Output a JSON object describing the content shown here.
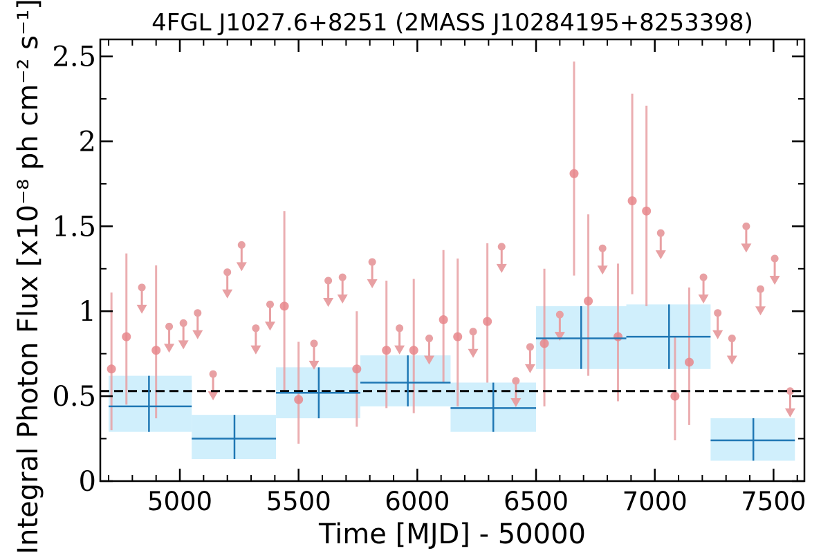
{
  "chart_data": {
    "type": "scatter",
    "title": "4FGL J1027.6+8251 (2MASS J10284195+8253398)",
    "xlabel": "Time [MJD] - 50000",
    "ylabel": "Integral Photon Flux [x10⁻⁸ ph cm⁻² s⁻¹]",
    "xlim": [
      4665,
      7630
    ],
    "ylim": [
      0,
      2.6
    ],
    "x_ticks": [
      5000,
      5500,
      6000,
      6500,
      7000,
      7500
    ],
    "y_ticks": [
      0,
      0.5,
      1,
      1.5,
      2,
      2.5
    ],
    "y_tick_labels": [
      "0",
      "0.5",
      "1",
      "1.5",
      "2",
      "2.5"
    ],
    "reference_line": {
      "y": 0.53,
      "style": "dashed",
      "color": "#000000"
    },
    "colors": {
      "points": "#e8878c",
      "arrows": "#e8a0a3",
      "bins": "#1f77b4",
      "bin_box": "#cdeefc"
    },
    "series": [
      {
        "kind": "detections",
        "points": [
          {
            "x": 4712,
            "y": 0.66,
            "ylo": 0.3,
            "yhi": 1.11
          },
          {
            "x": 4775,
            "y": 0.85,
            "ylo": 0.45,
            "yhi": 1.34
          },
          {
            "x": 4900,
            "y": 0.77,
            "ylo": 0.37,
            "yhi": 1.27
          },
          {
            "x": 5440,
            "y": 1.03,
            "ylo": 0.52,
            "yhi": 1.59
          },
          {
            "x": 5500,
            "y": 0.48,
            "ylo": 0.22,
            "yhi": 0.82
          },
          {
            "x": 5745,
            "y": 0.66,
            "ylo": 0.32,
            "yhi": 1.0
          },
          {
            "x": 5870,
            "y": 0.77,
            "ylo": 0.43,
            "yhi": 1.18
          },
          {
            "x": 5985,
            "y": 0.77,
            "ylo": 0.4,
            "yhi": 1.19
          },
          {
            "x": 6110,
            "y": 0.95,
            "ylo": 0.58,
            "yhi": 1.36
          },
          {
            "x": 6170,
            "y": 0.85,
            "ylo": 0.44,
            "yhi": 1.31
          },
          {
            "x": 6295,
            "y": 0.94,
            "ylo": 0.58,
            "yhi": 1.4
          },
          {
            "x": 6535,
            "y": 0.81,
            "ylo": 0.44,
            "yhi": 1.25
          },
          {
            "x": 6660,
            "y": 1.81,
            "ylo": 1.21,
            "yhi": 2.47
          },
          {
            "x": 6720,
            "y": 1.06,
            "ylo": 0.62,
            "yhi": 1.57
          },
          {
            "x": 6845,
            "y": 0.85,
            "ylo": 0.47,
            "yhi": 1.28
          },
          {
            "x": 6905,
            "y": 1.65,
            "ylo": 1.1,
            "yhi": 2.28
          },
          {
            "x": 6965,
            "y": 1.59,
            "ylo": 1.03,
            "yhi": 2.21
          },
          {
            "x": 7085,
            "y": 0.5,
            "ylo": 0.24,
            "yhi": 0.85
          },
          {
            "x": 7145,
            "y": 0.7,
            "ylo": 0.33,
            "yhi": 1.14
          }
        ]
      },
      {
        "kind": "upper_limits",
        "points": [
          {
            "x": 4840,
            "y": 1.14
          },
          {
            "x": 4955,
            "y": 0.91
          },
          {
            "x": 5015,
            "y": 0.93
          },
          {
            "x": 5075,
            "y": 0.99
          },
          {
            "x": 5140,
            "y": 0.63
          },
          {
            "x": 5200,
            "y": 1.23
          },
          {
            "x": 5260,
            "y": 1.39
          },
          {
            "x": 5320,
            "y": 0.9
          },
          {
            "x": 5380,
            "y": 1.04
          },
          {
            "x": 5565,
            "y": 0.81
          },
          {
            "x": 5625,
            "y": 1.18
          },
          {
            "x": 5685,
            "y": 1.2
          },
          {
            "x": 5810,
            "y": 1.29
          },
          {
            "x": 5925,
            "y": 0.9
          },
          {
            "x": 6050,
            "y": 0.84
          },
          {
            "x": 6235,
            "y": 0.88
          },
          {
            "x": 6355,
            "y": 1.38
          },
          {
            "x": 6475,
            "y": 0.79
          },
          {
            "x": 6415,
            "y": 0.59
          },
          {
            "x": 6600,
            "y": 0.98
          },
          {
            "x": 6780,
            "y": 1.37
          },
          {
            "x": 7025,
            "y": 1.46
          },
          {
            "x": 7205,
            "y": 1.2
          },
          {
            "x": 7265,
            "y": 0.99
          },
          {
            "x": 7325,
            "y": 0.84
          },
          {
            "x": 7385,
            "y": 1.5
          },
          {
            "x": 7445,
            "y": 1.13
          },
          {
            "x": 7505,
            "y": 1.31
          },
          {
            "x": 7570,
            "y": 0.53
          }
        ]
      },
      {
        "kind": "bins",
        "points": [
          {
            "x0": 4700,
            "x1": 5050,
            "y": 0.44,
            "ylo": 0.29,
            "yhi": 0.62,
            "xc": 4870
          },
          {
            "x0": 5050,
            "x1": 5405,
            "y": 0.25,
            "ylo": 0.13,
            "yhi": 0.39,
            "xc": 5230
          },
          {
            "x0": 5405,
            "x1": 5760,
            "y": 0.52,
            "ylo": 0.37,
            "yhi": 0.67,
            "xc": 5585
          },
          {
            "x0": 5760,
            "x1": 6140,
            "y": 0.58,
            "ylo": 0.44,
            "yhi": 0.74,
            "xc": 5960
          },
          {
            "x0": 6140,
            "x1": 6500,
            "y": 0.43,
            "ylo": 0.29,
            "yhi": 0.58,
            "xc": 6320
          },
          {
            "x0": 6500,
            "x1": 6880,
            "y": 0.84,
            "ylo": 0.66,
            "yhi": 1.03,
            "xc": 6690
          },
          {
            "x0": 6880,
            "x1": 7235,
            "y": 0.85,
            "ylo": 0.66,
            "yhi": 1.04,
            "xc": 7060
          },
          {
            "x0": 7235,
            "x1": 7590,
            "y": 0.24,
            "ylo": 0.12,
            "yhi": 0.37,
            "xc": 7415
          }
        ]
      }
    ]
  }
}
